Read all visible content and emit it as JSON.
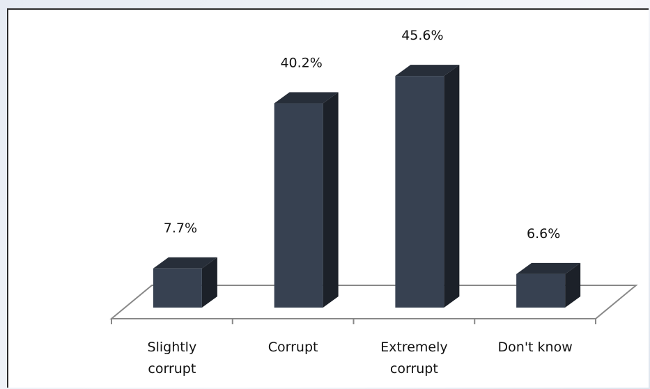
{
  "chart_data": {
    "type": "bar",
    "categories": [
      "Slightly corrupt",
      "Corrupt",
      "Extremely corrupt",
      "Don't know"
    ],
    "values": [
      7.7,
      40.2,
      45.6,
      6.6
    ],
    "value_labels": [
      "7.7%",
      "40.2%",
      "45.6%",
      "6.6%"
    ],
    "color": "#374151"
  }
}
